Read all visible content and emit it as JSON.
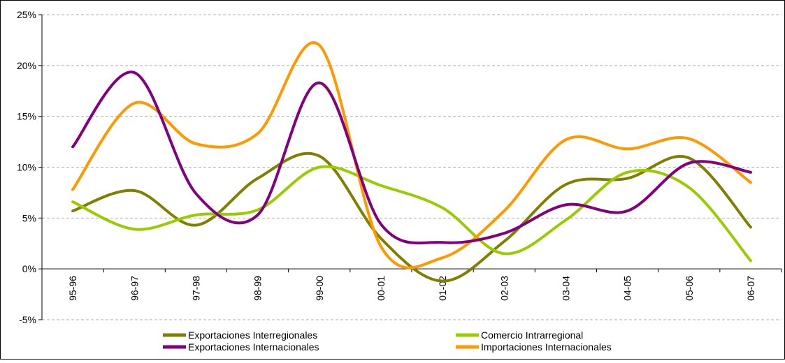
{
  "chart_data": {
    "type": "line",
    "title": "",
    "xlabel": "",
    "ylabel": "",
    "categories": [
      "95-96",
      "96-97",
      "97-98",
      "98-99",
      "99-00",
      "00-01",
      "01-02",
      "02-03",
      "03-04",
      "04-05",
      "05-06",
      "06-07"
    ],
    "ylim": [
      -5,
      25
    ],
    "yticks": [
      -5,
      0,
      5,
      10,
      15,
      20,
      25
    ],
    "ytick_labels": [
      "-5%",
      "0%",
      "5%",
      "10%",
      "15%",
      "20%",
      "25%"
    ],
    "grid": true,
    "legend_position": "bottom",
    "series": [
      {
        "name": "Exportaciones Interregionales",
        "color": "#808000",
        "values": [
          5.7,
          7.7,
          4.3,
          8.9,
          11.1,
          3.0,
          -1.2,
          2.7,
          8.3,
          8.9,
          10.9,
          4.1
        ]
      },
      {
        "name": "Comercio Intrarregional",
        "color": "#99CC00",
        "values": [
          6.6,
          3.9,
          5.3,
          5.8,
          10.0,
          8.2,
          6.0,
          1.5,
          4.8,
          9.5,
          8.0,
          0.8
        ]
      },
      {
        "name": "Exportaciones Internacionales",
        "color": "#800080",
        "values": [
          12.0,
          19.3,
          7.4,
          5.3,
          18.3,
          4.4,
          2.6,
          3.5,
          6.3,
          5.7,
          10.4,
          9.5
        ]
      },
      {
        "name": "Importaciones Internacionales",
        "color": "#FF9900",
        "values": [
          7.8,
          16.3,
          12.3,
          13.3,
          22.0,
          2.2,
          1.1,
          5.7,
          12.7,
          11.8,
          12.8,
          8.5
        ]
      }
    ]
  }
}
